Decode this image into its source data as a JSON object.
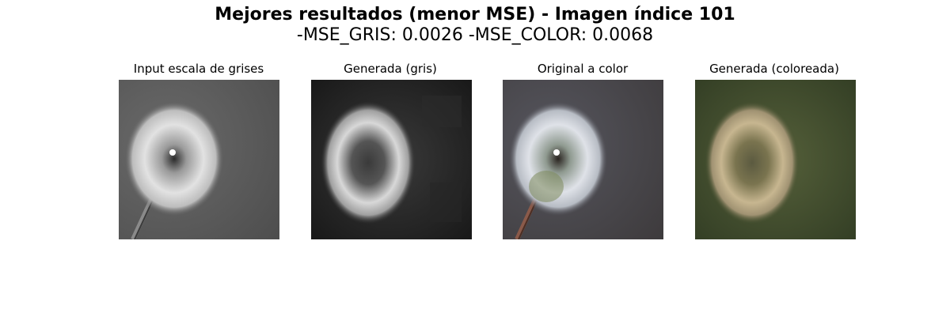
{
  "figure": {
    "suptitle_line1": "Mejores resultados (menor MSE) - Imagen índice 101",
    "suptitle_line2": "-MSE_GRIS: 0.0026 -MSE_COLOR: 0.0068"
  },
  "panels": [
    {
      "title": "Input escala de grises",
      "content": "grayscale dandelion photo"
    },
    {
      "title": "Generada (gris)",
      "content": "blurry grayscale reconstruction"
    },
    {
      "title": "Original a color",
      "content": "color dandelion photo on dark background"
    },
    {
      "title": "Generada (coloreada)",
      "content": "blurry colorized reconstruction on green background"
    }
  ],
  "colors": {
    "gray_bg": "#5e5e5e",
    "gen_gray_bg": "#202020",
    "color_bg": "#4a4a50",
    "gen_color_bg": "#3f4a2a",
    "seed_white": "#e6e6e6",
    "gen_color_seed": "#c7b690"
  }
}
